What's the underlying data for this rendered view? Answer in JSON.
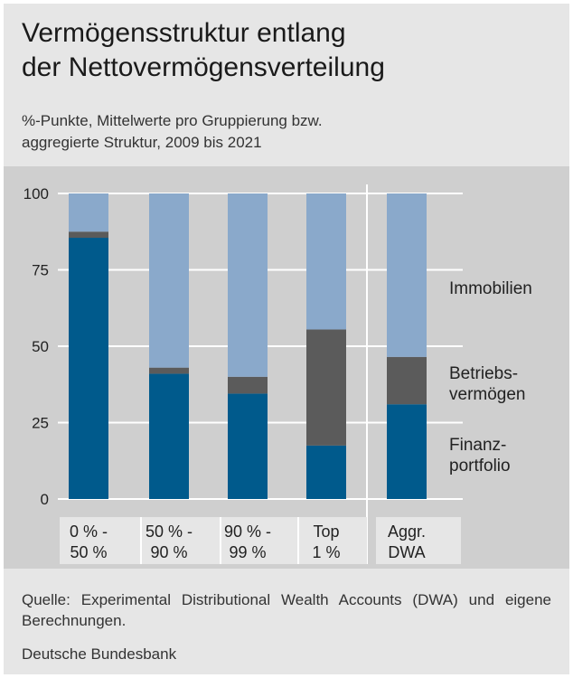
{
  "header": {
    "title_line1": "Vermögensstruktur entlang",
    "title_line2": "der Nettovermögensverteilung",
    "subtitle_line1": "%-Punkte, Mittelwerte pro Gruppierung bzw.",
    "subtitle_line2": "aggregierte Struktur, 2009 bis 2021"
  },
  "chart_data": {
    "type": "bar",
    "stacked": true,
    "categories": [
      [
        "0 % -",
        "50 %"
      ],
      [
        "50 % -",
        "90 %"
      ],
      [
        "90 % -",
        "99 %"
      ],
      [
        "Top",
        "1 %"
      ],
      [
        "Aggr.",
        "DWA"
      ]
    ],
    "series": [
      {
        "name": "Finanzportfolio",
        "label_lines": [
          "Finanz-",
          "portfolio"
        ],
        "color": "#005a8c",
        "values": [
          85.5,
          41,
          34.5,
          17.5,
          31
        ]
      },
      {
        "name": "Betriebsvermögen",
        "label_lines": [
          "Betriebs-",
          "vermögen"
        ],
        "color": "#5b5b5b",
        "values": [
          2,
          2,
          5.5,
          38,
          15.5
        ]
      },
      {
        "name": "Immobilien",
        "label_lines": [
          "Immobilien"
        ],
        "color": "#8aa9cb",
        "values": [
          12.5,
          57,
          60,
          44.5,
          53.5
        ]
      }
    ],
    "ylim": [
      0,
      100
    ],
    "yticks": [
      0,
      25,
      50,
      75,
      100
    ],
    "grid": true,
    "xlabel": "",
    "ylabel": ""
  },
  "footer": {
    "source": "Quelle: Experimental Distributional Wealth Accounts (DWA) und eigene Berechnungen.",
    "org": "Deutsche Bundesbank"
  }
}
